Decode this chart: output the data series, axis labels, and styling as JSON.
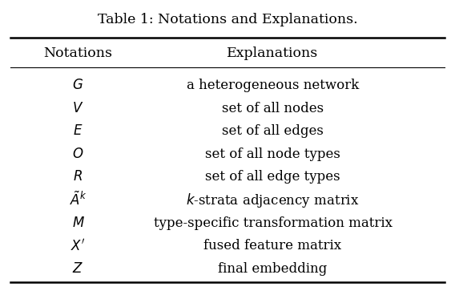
{
  "title": "Table 1: Notations and Explanations.",
  "col_headers": [
    "Notations",
    "Explanations"
  ],
  "rows": [
    [
      "$G$",
      "a heterogeneous network"
    ],
    [
      "$V$",
      "set of all nodes"
    ],
    [
      "$E$",
      "set of all edges"
    ],
    [
      "$O$",
      "set of all node types"
    ],
    [
      "$R$",
      "set of all edge types"
    ],
    [
      "$\\tilde{A}^k$",
      "$k$-strata adjacency matrix"
    ],
    [
      "$M$",
      "type-specific transformation matrix"
    ],
    [
      "$X^{\\prime}$",
      "fused feature matrix"
    ],
    [
      "$Z$",
      "final embedding"
    ]
  ],
  "bg_color": "#ffffff",
  "text_color": "#000000",
  "title_fontsize": 12.5,
  "header_fontsize": 12.5,
  "cell_fontsize": 12,
  "fig_width": 5.68,
  "fig_height": 3.68
}
